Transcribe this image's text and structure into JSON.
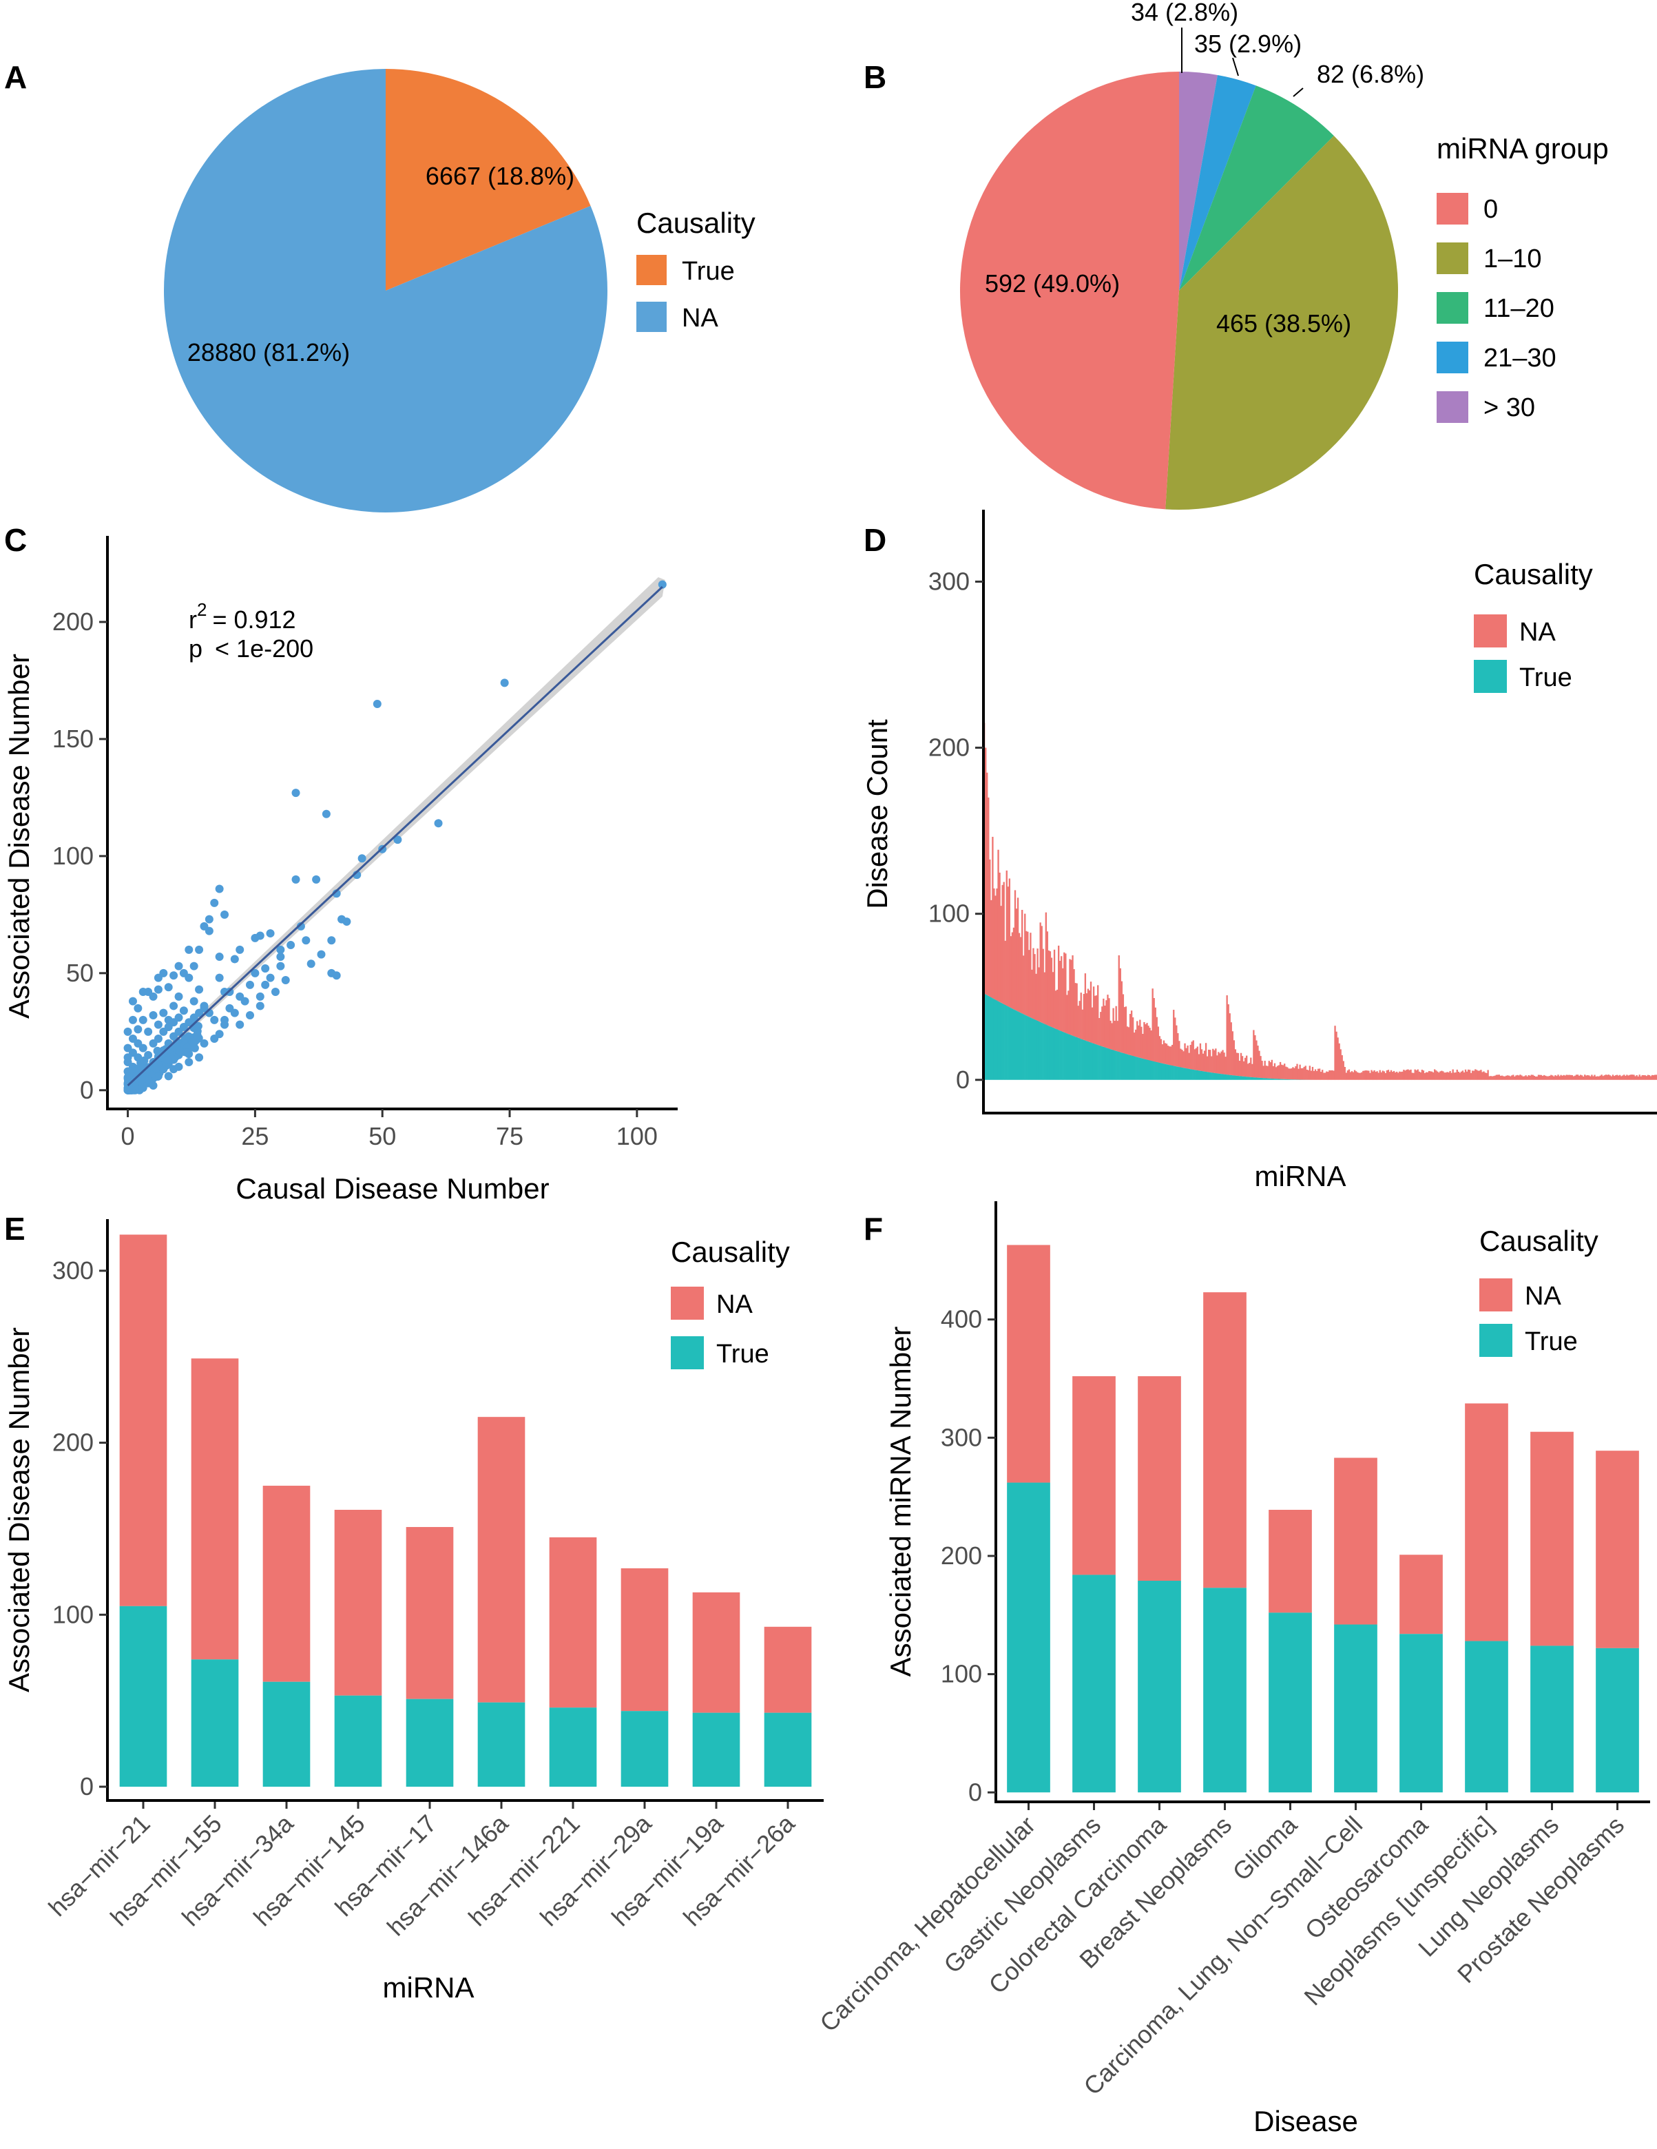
{
  "panels": {
    "A": {
      "label": "A"
    },
    "B": {
      "label": "B"
    },
    "C": {
      "label": "C"
    },
    "D": {
      "label": "D"
    },
    "E": {
      "label": "E"
    },
    "F": {
      "label": "F"
    }
  },
  "colors": {
    "pie_a_true": "#F07E3A",
    "pie_a_na": "#5BA3D8",
    "na": "#EE7571",
    "true": "#22BDBA",
    "grp0": "#EE7571",
    "grp1": "#9EA23B",
    "grp11": "#35B77A",
    "grp21": "#2E9FDC",
    "grp30": "#AA7FC2",
    "scatter": "#4F9CD8",
    "fit": "#3A5A99",
    "band": "#C8C8C8"
  },
  "chart_data": [
    {
      "panel": "A",
      "type": "pie",
      "legend_title": "Causality",
      "slices": [
        {
          "name": "True",
          "value": 6667,
          "label": "6667 (18.8%)"
        },
        {
          "name": "NA",
          "value": 28880,
          "label": "28880 (81.2%)"
        }
      ]
    },
    {
      "panel": "B",
      "type": "pie",
      "legend_title": "miRNA group",
      "slices": [
        {
          "name": "0",
          "value": 592,
          "label": "592 (49.0%)"
        },
        {
          "name": "1–10",
          "value": 465,
          "label": "465 (38.5%)"
        },
        {
          "name": "11–20",
          "value": 82,
          "label": "82 (6.8%)"
        },
        {
          "name": "21–30",
          "value": 35,
          "label": "35 (2.9%)"
        },
        {
          "name": "> 30",
          "value": 34,
          "label": "34 (2.8%)"
        }
      ]
    },
    {
      "panel": "C",
      "type": "scatter",
      "xlabel": "Causal Disease Number",
      "ylabel": "Associated Disease Number",
      "xlim": [
        -4,
        108
      ],
      "ylim": [
        -8,
        225
      ],
      "xticks": [
        0,
        25,
        50,
        75,
        100
      ],
      "yticks": [
        0,
        50,
        100,
        150,
        200
      ],
      "annotation": {
        "r2": "r",
        "r2_sup": "2",
        "r2_value": "= 0.912",
        "p": "p",
        "p_value": "< 1e-200"
      },
      "fit": {
        "x0": 0,
        "y0": 2,
        "x1": 105,
        "y1": 215
      },
      "points": [
        [
          105,
          216
        ],
        [
          74,
          174
        ],
        [
          49,
          165
        ],
        [
          33,
          127
        ],
        [
          39,
          118
        ],
        [
          61,
          114
        ],
        [
          53,
          107
        ],
        [
          50,
          103
        ],
        [
          46,
          99
        ],
        [
          45,
          92
        ],
        [
          41,
          84
        ],
        [
          37,
          90
        ],
        [
          33,
          90
        ],
        [
          42,
          73
        ],
        [
          40,
          50
        ],
        [
          41,
          49
        ],
        [
          34,
          70
        ],
        [
          28,
          67
        ],
        [
          30,
          57
        ],
        [
          30,
          53
        ],
        [
          27,
          52
        ],
        [
          26,
          66
        ],
        [
          25,
          65
        ],
        [
          22,
          60
        ],
        [
          21,
          56
        ],
        [
          19,
          75
        ],
        [
          18,
          86
        ],
        [
          17,
          80
        ],
        [
          16,
          73
        ],
        [
          18,
          57
        ],
        [
          16,
          68
        ],
        [
          15,
          70
        ],
        [
          14,
          60
        ],
        [
          13,
          53
        ],
        [
          12,
          48
        ],
        [
          11,
          50
        ],
        [
          10,
          53
        ],
        [
          9,
          49
        ],
        [
          8,
          44
        ],
        [
          7,
          50
        ],
        [
          6,
          48
        ],
        [
          6,
          43
        ],
        [
          5,
          40
        ],
        [
          4,
          42
        ],
        [
          19,
          42
        ],
        [
          20,
          42
        ],
        [
          18,
          48
        ],
        [
          12,
          60
        ],
        [
          10,
          40
        ],
        [
          14,
          43
        ],
        [
          15,
          36
        ],
        [
          16,
          33
        ],
        [
          13,
          38
        ],
        [
          11,
          34
        ],
        [
          9,
          36
        ],
        [
          8,
          30
        ],
        [
          7,
          33
        ],
        [
          6,
          28
        ],
        [
          5,
          32
        ],
        [
          4,
          25
        ],
        [
          3,
          30
        ],
        [
          2,
          26
        ],
        [
          2,
          20
        ],
        [
          1,
          16
        ],
        [
          1,
          10
        ],
        [
          0,
          8
        ],
        [
          0,
          5
        ],
        [
          0,
          3
        ],
        [
          1,
          2
        ],
        [
          2,
          4
        ],
        [
          3,
          7
        ],
        [
          4,
          9
        ],
        [
          5,
          12
        ],
        [
          6,
          14
        ],
        [
          7,
          17
        ],
        [
          8,
          20
        ],
        [
          9,
          23
        ],
        [
          10,
          25
        ],
        [
          11,
          27
        ],
        [
          12,
          29
        ],
        [
          13,
          31
        ],
        [
          14,
          33
        ],
        [
          15,
          35
        ],
        [
          0,
          12
        ],
        [
          1,
          22
        ],
        [
          2,
          14
        ],
        [
          3,
          18
        ],
        [
          4,
          15
        ],
        [
          5,
          20
        ],
        [
          6,
          22
        ],
        [
          7,
          25
        ],
        [
          8,
          27
        ],
        [
          9,
          29
        ],
        [
          10,
          31
        ],
        [
          3,
          1
        ],
        [
          4,
          3
        ],
        [
          5,
          5
        ],
        [
          6,
          6
        ],
        [
          7,
          9
        ],
        [
          8,
          11
        ],
        [
          9,
          13
        ],
        [
          10,
          15
        ],
        [
          11,
          17
        ],
        [
          12,
          19
        ],
        [
          20,
          35
        ],
        [
          22,
          40
        ],
        [
          24,
          45
        ],
        [
          23,
          38
        ],
        [
          21,
          33
        ],
        [
          17,
          30
        ],
        [
          19,
          28
        ],
        [
          25,
          50
        ],
        [
          27,
          45
        ],
        [
          26,
          40
        ],
        [
          28,
          48
        ],
        [
          30,
          60
        ],
        [
          32,
          62
        ],
        [
          35,
          64
        ],
        [
          0,
          18
        ],
        [
          0,
          25
        ],
        [
          1,
          30
        ],
        [
          0,
          14
        ],
        [
          2,
          35
        ],
        [
          1,
          38
        ],
        [
          3,
          42
        ],
        [
          2,
          8
        ],
        [
          3,
          12
        ],
        [
          1,
          5
        ],
        [
          0,
          1
        ],
        [
          2,
          1
        ],
        [
          5,
          2
        ],
        [
          6,
          8
        ],
        [
          8,
          6
        ],
        [
          9,
          9
        ],
        [
          10,
          10
        ],
        [
          12,
          12
        ],
        [
          14,
          14
        ],
        [
          15,
          20
        ],
        [
          17,
          22
        ],
        [
          18,
          24
        ],
        [
          19,
          30
        ],
        [
          22,
          28
        ],
        [
          24,
          32
        ],
        [
          26,
          36
        ],
        [
          29,
          42
        ],
        [
          31,
          47
        ],
        [
          36,
          54
        ],
        [
          38,
          58
        ],
        [
          40,
          64
        ],
        [
          43,
          72
        ]
      ]
    },
    {
      "panel": "D",
      "type": "bar",
      "xlabel": "miRNA",
      "ylabel": "Disease Count",
      "ylim": [
        -20,
        340
      ],
      "yticks": [
        0,
        100,
        200,
        300
      ],
      "legend_title": "Causality",
      "series": [
        {
          "name": "NA",
          "shape": "descending stacked bars, max total 215 at leftmost miRNA, spikes near positions 20, 40, 52 percent"
        },
        {
          "name": "True",
          "shape": "descending to 0, max 52"
        }
      ],
      "profile": {
        "n_bars": 480,
        "total_max": 215,
        "true_max": 52
      }
    },
    {
      "panel": "E",
      "type": "bar",
      "stacked": true,
      "xlabel": "miRNA",
      "ylabel": "Associated Disease Number",
      "ylim": [
        -8,
        330
      ],
      "yticks": [
        0,
        100,
        200,
        300
      ],
      "legend_title": "Causality",
      "categories": [
        "hsa−mir−21",
        "hsa−mir−155",
        "hsa−mir−34a",
        "hsa−mir−145",
        "hsa−mir−17",
        "hsa−mir−146a",
        "hsa−mir−221",
        "hsa−mir−29a",
        "hsa−mir−19a",
        "hsa−mir−26a"
      ],
      "series": [
        {
          "name": "True",
          "values": [
            105,
            74,
            61,
            53,
            51,
            49,
            46,
            44,
            43,
            43
          ]
        },
        {
          "name": "NA",
          "values": [
            216,
            175,
            114,
            108,
            100,
            166,
            99,
            83,
            70,
            50
          ]
        }
      ]
    },
    {
      "panel": "F",
      "type": "bar",
      "stacked": true,
      "xlabel": "Disease",
      "ylabel": "Associated miRNA Number",
      "ylim": [
        -8,
        500
      ],
      "yticks": [
        0,
        100,
        200,
        300,
        400
      ],
      "legend_title": "Causality",
      "categories": [
        "Carcinoma, Hepatocellular",
        "Gastric Neoplasms",
        "Colorectal Carcinoma",
        "Breast Neoplasms",
        "Glioma",
        "Carcinoma, Lung, Non−Small−Cell",
        "Osteosarcoma",
        "Neoplasms [unspecific]",
        "Lung Neoplasms",
        "Prostate Neoplasms"
      ],
      "series": [
        {
          "name": "True",
          "values": [
            262,
            184,
            179,
            173,
            152,
            142,
            134,
            128,
            124,
            122
          ]
        },
        {
          "name": "NA",
          "values": [
            201,
            168,
            173,
            250,
            87,
            141,
            67,
            201,
            181,
            167
          ]
        }
      ]
    }
  ],
  "legends": {
    "A": [
      "True",
      "NA"
    ],
    "B": [
      "0",
      "1–10",
      "11–20",
      "21–30",
      "> 30"
    ],
    "D": [
      "NA",
      "True"
    ],
    "E": [
      "NA",
      "True"
    ],
    "F": [
      "NA",
      "True"
    ]
  }
}
